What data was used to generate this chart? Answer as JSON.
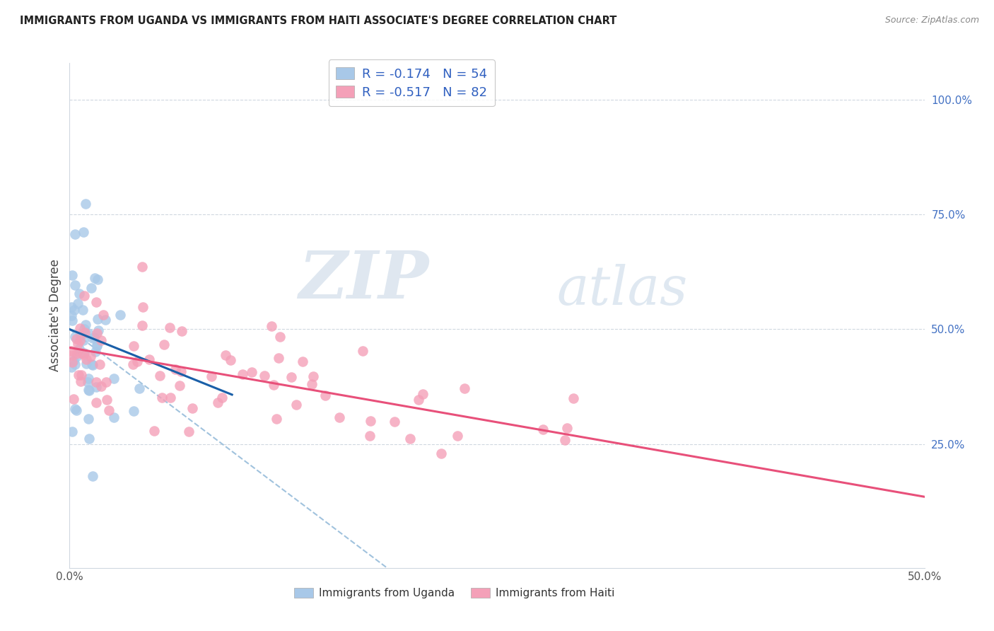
{
  "title": "IMMIGRANTS FROM UGANDA VS IMMIGRANTS FROM HAITI ASSOCIATE'S DEGREE CORRELATION CHART",
  "source": "Source: ZipAtlas.com",
  "ylabel": "Associate's Degree",
  "right_yticks": [
    "100.0%",
    "75.0%",
    "50.0%",
    "25.0%"
  ],
  "right_ytick_vals": [
    1.0,
    0.75,
    0.5,
    0.25
  ],
  "legend1_r": "-0.174",
  "legend1_n": "54",
  "legend2_r": "-0.517",
  "legend2_n": "82",
  "uganda_color": "#a8c8e8",
  "haiti_color": "#f4a0b8",
  "uganda_line_color": "#1a5fa8",
  "haiti_line_color": "#e8507a",
  "dashed_line_color": "#90b8d8",
  "r_color_uganda": "#3060c0",
  "n_color_uganda": "#3060c0",
  "r_color_haiti": "#e8507a",
  "n_color_haiti": "#3060c0",
  "xlim": [
    0.0,
    0.5
  ],
  "ylim": [
    -0.02,
    1.08
  ],
  "grid_color": "#d0d8e0",
  "spine_color": "#d0d8e0",
  "xtick_color": "#555555",
  "ytick_color": "#4472c4",
  "watermark_zip_color": "#c5d5e5",
  "watermark_atlas_color": "#b8cce0",
  "uganda_scatter_seed": 12,
  "haiti_scatter_seed": 77
}
